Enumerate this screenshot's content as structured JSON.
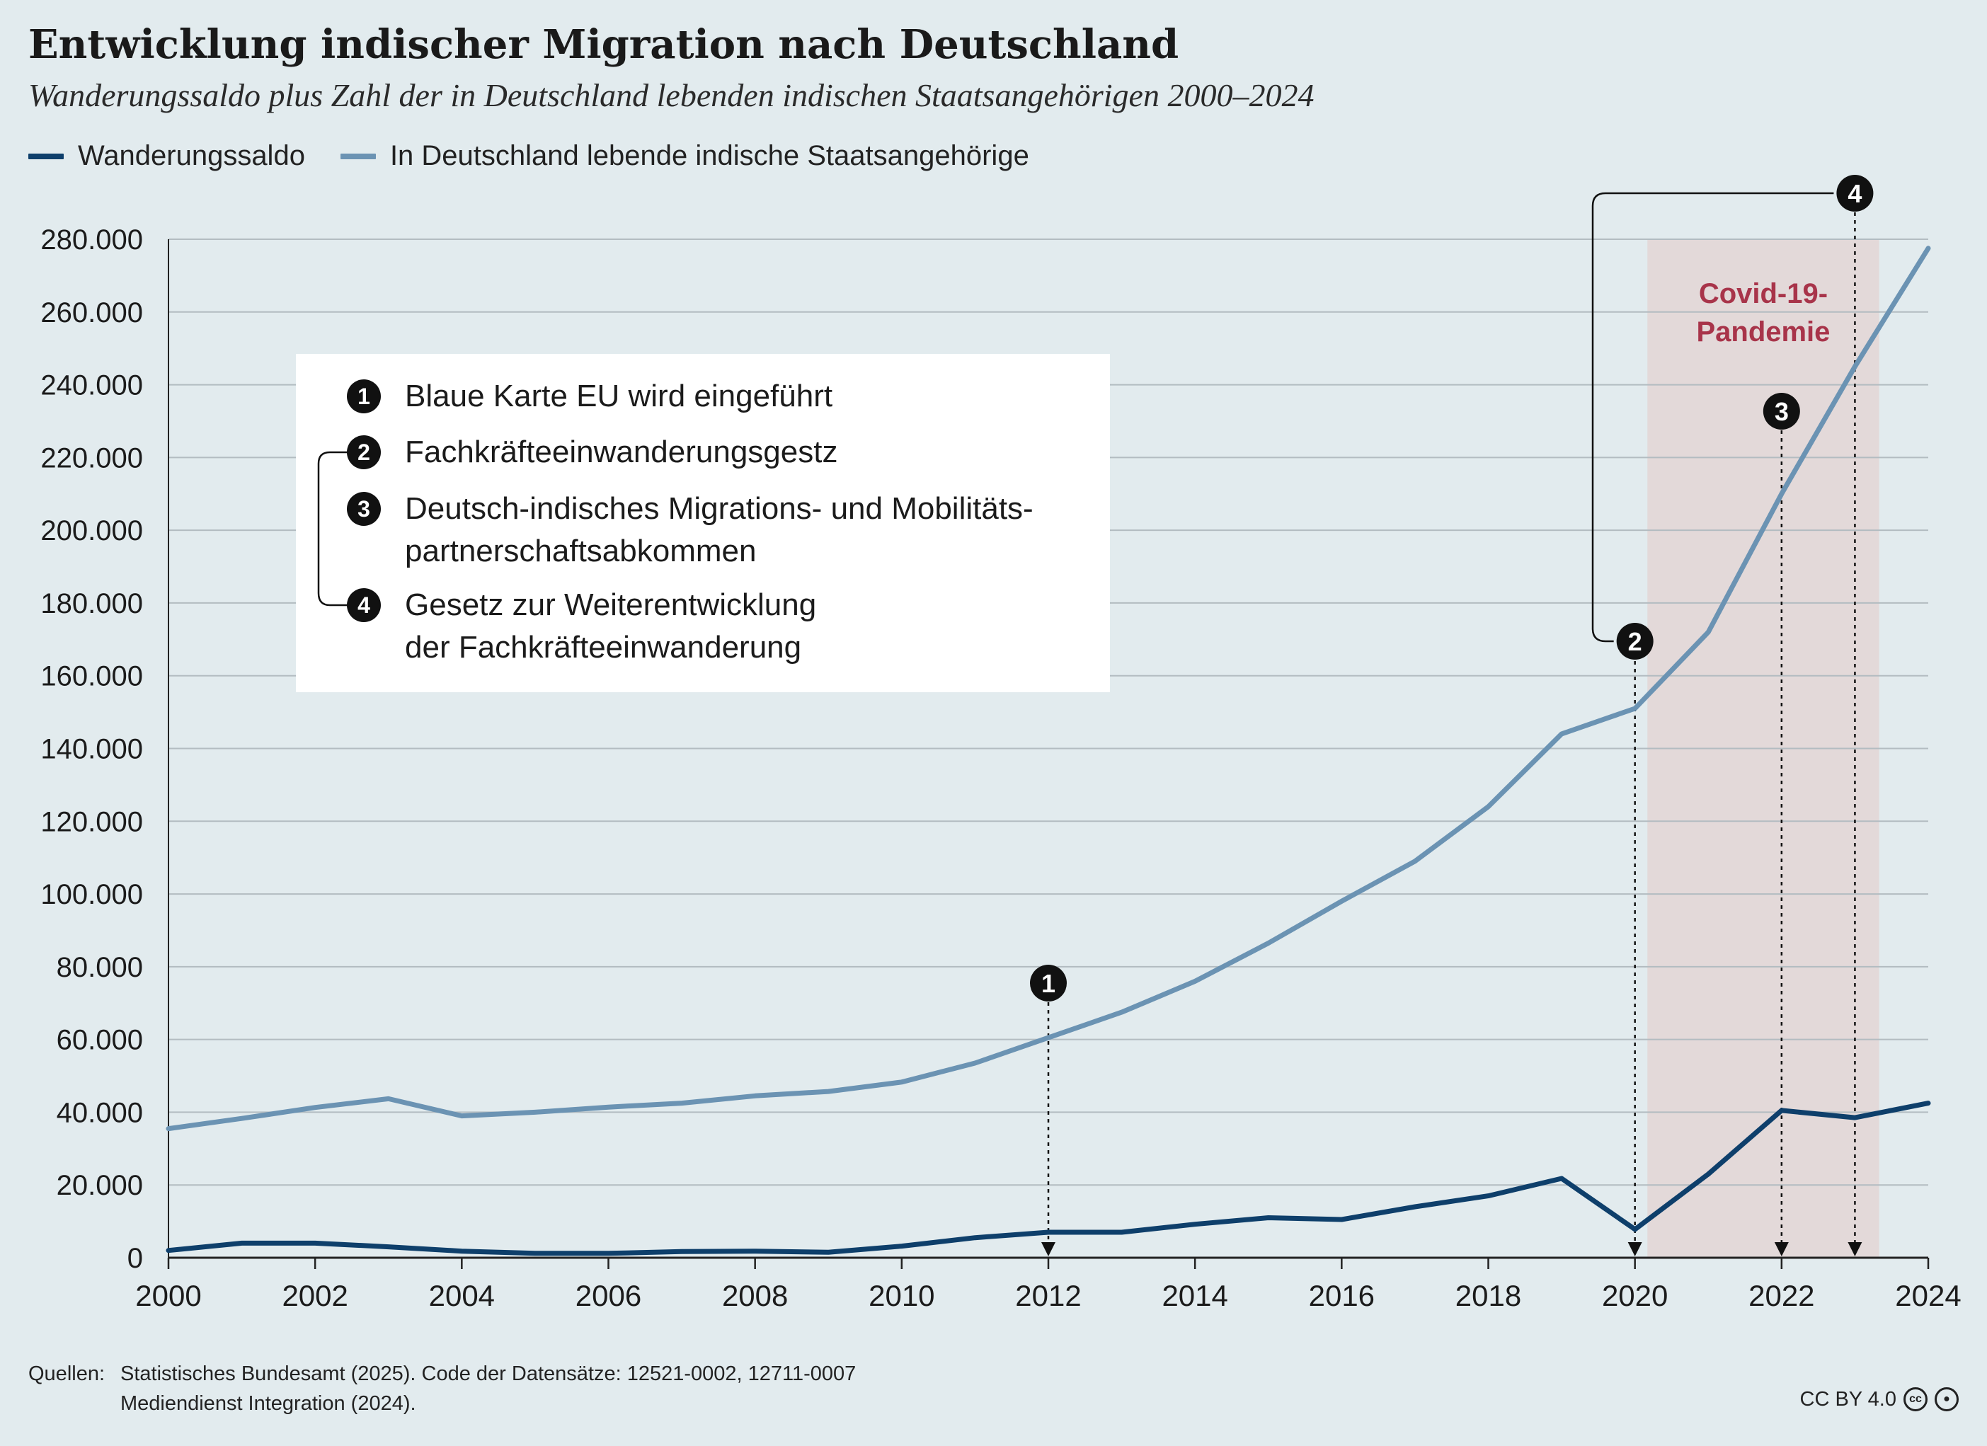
{
  "title": "Entwicklung indischer Migration nach Deutschland",
  "subtitle": "Wanderungssaldo plus Zahl der in Deutschland lebenden indischen Staatsangehörigen 2000–2024",
  "legend": [
    {
      "label": "Wanderungssaldo",
      "color": "#0e3f6b"
    },
    {
      "label": "In Deutschland lebende indische Staatsangehörige",
      "color": "#6b93b3"
    }
  ],
  "info_box": {
    "items": [
      {
        "num": "1",
        "text": "Blaue Karte EU wird eingeführt"
      },
      {
        "num": "2",
        "text": "Fachkräfteeinwanderungsgestz"
      },
      {
        "num": "3",
        "text": "Deutsch-indisches Migrations- und Mobilitäts-\npartnerschaftsabkommen"
      },
      {
        "num": "4",
        "text": "Gesetz zur Weiterentwicklung\nder Fachkräfteeinwanderung"
      }
    ]
  },
  "chart_data": {
    "type": "line",
    "x": [
      2000,
      2001,
      2002,
      2003,
      2004,
      2005,
      2006,
      2007,
      2008,
      2009,
      2010,
      2011,
      2012,
      2013,
      2014,
      2015,
      2016,
      2017,
      2018,
      2019,
      2020,
      2021,
      2022,
      2023,
      2024
    ],
    "series": [
      {
        "name": "Wanderungssaldo",
        "color": "#0e3f6b",
        "values": [
          2000,
          4000,
          4000,
          3000,
          1800,
          1200,
          1200,
          1700,
          1800,
          1500,
          3200,
          5500,
          7000,
          7000,
          9200,
          11000,
          10500,
          14000,
          17000,
          21800,
          7800,
          23000,
          40500,
          38500,
          42500
        ]
      },
      {
        "name": "In Deutschland lebende indische Staatsangehörige",
        "color": "#6b93b3",
        "values": [
          35500,
          38300,
          41300,
          43700,
          39000,
          40000,
          41400,
          42500,
          44500,
          45700,
          48300,
          53500,
          60500,
          67500,
          76000,
          86500,
          98000,
          109000,
          124000,
          144000,
          151000,
          172000,
          210000,
          245000,
          277500
        ]
      }
    ],
    "xticks": [
      "2000",
      "2002",
      "2004",
      "2006",
      "2008",
      "2010",
      "2012",
      "2014",
      "2016",
      "2018",
      "2020",
      "2022",
      "2024"
    ],
    "yticks": [
      "0",
      "20.000",
      "40.000",
      "60.000",
      "80.000",
      "100.000",
      "120.000",
      "140.000",
      "160.000",
      "180.000",
      "200.000",
      "220.000",
      "240.000",
      "260.000",
      "280.000"
    ],
    "ylim": [
      0,
      280000
    ],
    "xlim": [
      2000,
      2024
    ],
    "grid": true,
    "shaded_period": {
      "label_line1": "Covid-19-",
      "label_line2": "Pandemie",
      "from": 2020.17,
      "to": 2023.33,
      "color": "#e3d9d9",
      "label_color": "#a8344a"
    },
    "markers": [
      {
        "num": "1",
        "year": 2012
      },
      {
        "num": "2",
        "year": 2020
      },
      {
        "num": "3",
        "year": 2022
      },
      {
        "num": "4",
        "year": 2023
      }
    ]
  },
  "footer": {
    "source_label": "Quellen:",
    "source_lines": [
      "Statistisches Bundesamt (2025). Code der Datensätze: 12521-0002, 12711-0007",
      "Mediendienst Integration (2024)."
    ],
    "license": "CC BY 4.0"
  }
}
